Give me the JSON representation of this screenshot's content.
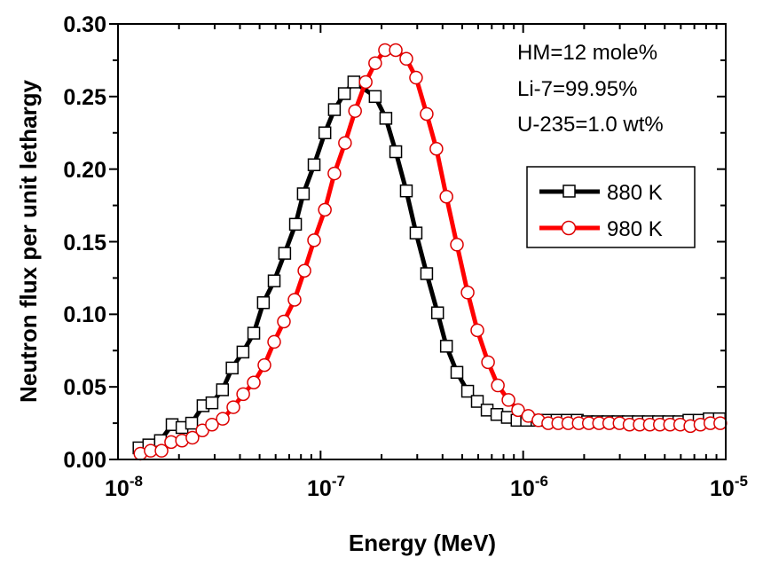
{
  "chart_data": {
    "type": "line",
    "xlabel": "Energy (MeV)",
    "ylabel": "Neutron flux per unit lethargy",
    "xscale": "log",
    "xlim": [
      1e-08,
      1e-05
    ],
    "ylim": [
      0,
      0.3
    ],
    "x_ticks": [
      {
        "base": "10",
        "exp": "-8"
      },
      {
        "base": "10",
        "exp": "-7"
      },
      {
        "base": "10",
        "exp": "-6"
      },
      {
        "base": "10",
        "exp": "-5"
      }
    ],
    "y_ticks": [
      "0.00",
      "0.05",
      "0.10",
      "0.15",
      "0.20",
      "0.25",
      "0.30"
    ],
    "grid": false,
    "legend_placement": "right",
    "annotations": [
      "HM=12 mole%",
      "Li-7=99.95%",
      "U-235=1.0 wt%"
    ],
    "series": [
      {
        "name": "880 K",
        "color": "#000000",
        "marker": "square",
        "x": [
          1.27e-08,
          1.42e-08,
          1.62e-08,
          1.85e-08,
          2.07e-08,
          2.31e-08,
          2.63e-08,
          2.91e-08,
          3.28e-08,
          3.66e-08,
          4.14e-08,
          4.68e-08,
          5.22e-08,
          5.9e-08,
          6.65e-08,
          7.52e-08,
          8.22e-08,
          9.29e-08,
          1.05e-07,
          1.17e-07,
          1.31e-07,
          1.46e-07,
          1.86e-07,
          2.1e-07,
          2.35e-07,
          2.65e-07,
          2.96e-07,
          3.34e-07,
          3.78e-07,
          4.18e-07,
          4.71e-07,
          5.32e-07,
          5.94e-07,
          6.64e-07,
          7.42e-07,
          8.36e-07,
          9.33e-07,
          1.04e-06,
          1.17e-06,
          1.31e-06,
          1.47e-06,
          1.65e-06,
          1.85e-06,
          2.08e-06,
          2.33e-06,
          2.62e-06,
          2.94e-06,
          3.3e-06,
          3.7e-06,
          4.15e-06,
          4.66e-06,
          5.23e-06,
          5.87e-06,
          6.58e-06,
          7.39e-06,
          8.29e-06,
          9.3e-06
        ],
        "y": [
          0.008,
          0.01,
          0.013,
          0.024,
          0.022,
          0.025,
          0.037,
          0.039,
          0.048,
          0.063,
          0.074,
          0.087,
          0.108,
          0.123,
          0.142,
          0.162,
          0.183,
          0.203,
          0.225,
          0.241,
          0.252,
          0.26,
          0.25,
          0.235,
          0.212,
          0.185,
          0.156,
          0.128,
          0.101,
          0.078,
          0.06,
          0.047,
          0.04,
          0.034,
          0.031,
          0.029,
          0.027,
          0.027,
          0.027,
          0.027,
          0.027,
          0.027,
          0.027,
          0.026,
          0.026,
          0.026,
          0.026,
          0.026,
          0.026,
          0.026,
          0.026,
          0.026,
          0.026,
          0.027,
          0.027,
          0.028,
          0.028
        ]
      },
      {
        "name": "980 K",
        "color": "#ff0000",
        "marker": "circle",
        "x": [
          1.29e-08,
          1.45e-08,
          1.64e-08,
          1.83e-08,
          2.07e-08,
          2.33e-08,
          2.61e-08,
          2.91e-08,
          3.29e-08,
          3.71e-08,
          4.15e-08,
          4.68e-08,
          5.28e-08,
          5.9e-08,
          6.59e-08,
          7.44e-08,
          8.32e-08,
          9.29e-08,
          1.05e-07,
          1.17e-07,
          1.32e-07,
          1.48e-07,
          1.67e-07,
          1.86e-07,
          2.08e-07,
          2.35e-07,
          2.65e-07,
          2.96e-07,
          3.34e-07,
          3.73e-07,
          4.18e-07,
          4.71e-07,
          5.32e-07,
          5.94e-07,
          6.71e-07,
          7.5e-07,
          8.46e-07,
          9.44e-07,
          1.06e-06,
          1.19e-06,
          1.33e-06,
          1.49e-06,
          1.67e-06,
          1.88e-06,
          2.11e-06,
          2.37e-06,
          2.66e-06,
          2.99e-06,
          3.35e-06,
          3.76e-06,
          4.22e-06,
          4.73e-06,
          5.31e-06,
          5.96e-06,
          6.69e-06,
          7.5e-06,
          8.4e-06,
          9.4e-06
        ],
        "y": [
          0.004,
          0.006,
          0.006,
          0.012,
          0.013,
          0.015,
          0.02,
          0.024,
          0.028,
          0.036,
          0.045,
          0.053,
          0.065,
          0.081,
          0.095,
          0.11,
          0.13,
          0.151,
          0.172,
          0.197,
          0.218,
          0.24,
          0.26,
          0.273,
          0.282,
          0.282,
          0.276,
          0.263,
          0.238,
          0.214,
          0.181,
          0.148,
          0.115,
          0.089,
          0.067,
          0.051,
          0.041,
          0.034,
          0.03,
          0.027,
          0.025,
          0.025,
          0.025,
          0.025,
          0.025,
          0.025,
          0.025,
          0.025,
          0.024,
          0.024,
          0.024,
          0.024,
          0.024,
          0.024,
          0.023,
          0.024,
          0.025,
          0.025
        ]
      }
    ]
  }
}
